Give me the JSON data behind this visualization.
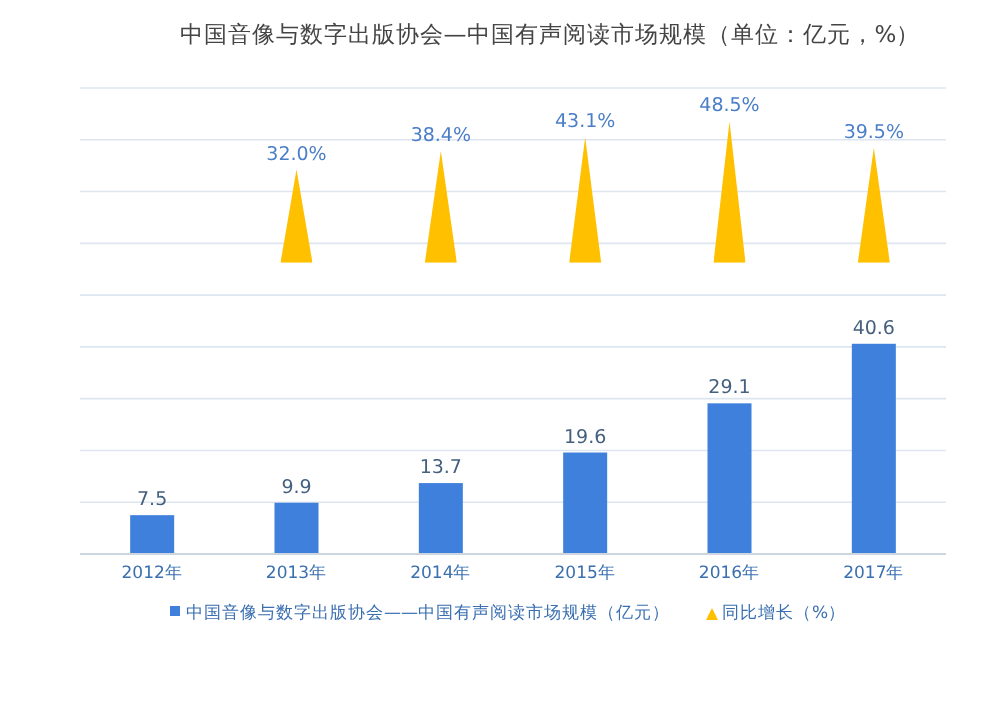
{
  "chart_data": {
    "type": "bar",
    "title": "中国音像与数字出版协会—中国有声阅读市场规模（单位：亿元，%）",
    "categories": [
      "2012年",
      "2013年",
      "2014年",
      "2015年",
      "2016年",
      "2017年"
    ],
    "series": [
      {
        "name": "中国音像与数字出版协会——中国有声阅读市场规模（亿元）",
        "color": "#3f80dc",
        "values": [
          7.5,
          9.9,
          13.7,
          19.6,
          29.1,
          40.6
        ]
      },
      {
        "name": "同比增长（%）",
        "color": "#ffc000",
        "axis": "y2",
        "values": [
          null,
          32.0,
          38.4,
          43.1,
          48.5,
          39.5
        ],
        "value_labels": [
          null,
          "32.0%",
          "38.4%",
          "43.1%",
          "48.5%",
          "39.5%"
        ]
      }
    ],
    "ylim": [
      0,
      90
    ],
    "y2lim": [
      -100,
      60
    ],
    "data_labels": true,
    "grid": "y",
    "legend": "bottom"
  }
}
